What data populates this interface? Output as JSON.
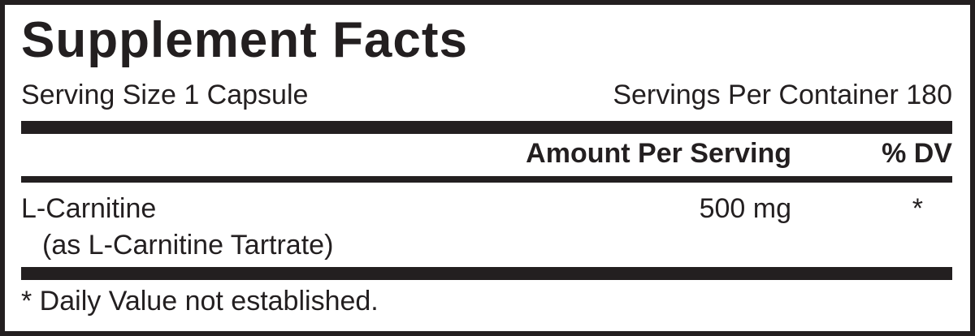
{
  "title": "Supplement Facts",
  "serving_size": "Serving Size 1 Capsule",
  "servings_per_container": "Servings Per Container 180",
  "header": {
    "amount": "Amount Per Serving",
    "dv": "% DV"
  },
  "rows": [
    {
      "name": "L-Carnitine",
      "sub": "(as L-Carnitine Tartrate)",
      "amount": "500 mg",
      "dv": "*"
    }
  ],
  "footnote": "* Daily Value not established."
}
